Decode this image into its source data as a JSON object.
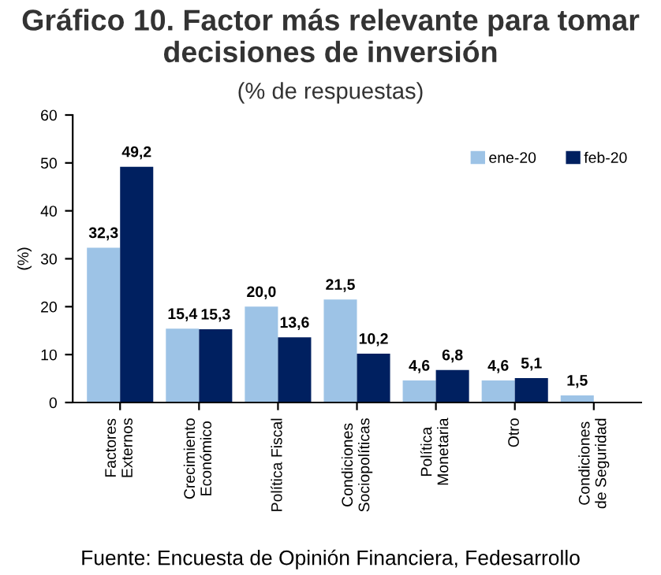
{
  "chart_data": {
    "type": "bar",
    "title": "Gráfico 10. Factor más relevante para tomar decisiones de inversión",
    "subtitle": "(% de respuestas)",
    "ylabel": "(%)",
    "categories": [
      "Factores\nExternos",
      "Crecimiento\nEconómico",
      "Política Fiscal",
      "Condiciones\nSociopolíticas",
      "Política\nMonetaria",
      "Otro",
      "Condiciones\nde Seguridad"
    ],
    "series": [
      {
        "name": "ene-20",
        "color": "#9dc3e6",
        "values": [
          32.3,
          15.4,
          20.0,
          21.5,
          4.6,
          4.6,
          1.5
        ],
        "value_labels": [
          "32,3",
          "15,4",
          "20,0",
          "21,5",
          "4,6",
          "4,6",
          "1,5"
        ]
      },
      {
        "name": "feb-20",
        "color": "#002060",
        "values": [
          49.2,
          15.3,
          13.6,
          10.2,
          6.8,
          5.1,
          null
        ],
        "value_labels": [
          "49,2",
          "15,3",
          "13,6",
          "10,2",
          "6,8",
          "5,1",
          null
        ]
      }
    ],
    "ylim": [
      0,
      60
    ],
    "yticks": [
      0,
      10,
      20,
      30,
      40,
      50,
      60
    ],
    "grid": false,
    "legend": "top right",
    "annotations": [
      "Fuente: Encuesta de Opinión Financiera, Fedesarrollo"
    ]
  }
}
